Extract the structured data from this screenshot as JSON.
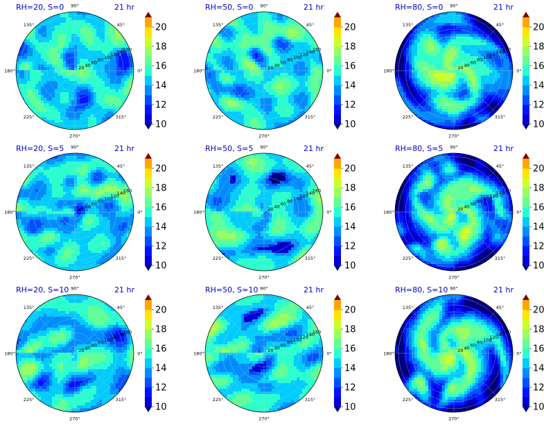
{
  "figure": {
    "colormap": "jet",
    "colors": [
      "#00007f",
      "#0000d5",
      "#0014ff",
      "#0050ff",
      "#008cff",
      "#00ccff",
      "#29ffce",
      "#60ff97",
      "#97ff60",
      "#ceff29",
      "#ffe500",
      "#ffa600",
      "#ff6800",
      "#ff2900",
      "#d50000",
      "#7f0000"
    ],
    "level_bounds": [
      10,
      11,
      12,
      13,
      14,
      15,
      16,
      17,
      18,
      19,
      20,
      21
    ],
    "grid": true
  },
  "chart_data": [
    {
      "type": "heatmap",
      "projection": "polar",
      "title": "RH=20, S=0",
      "time_label": "21 hr",
      "angle_ticks": [
        "90°",
        "45°",
        "0°",
        "315°",
        "270°",
        "225°",
        "180°",
        "135°"
      ],
      "radial_ticks": [
        "20",
        "40",
        "60",
        "80",
        "100",
        "120",
        "140",
        "160"
      ],
      "colorbar_ticks": [
        "10",
        "12",
        "14",
        "16",
        "18",
        "20"
      ],
      "colorbar_extend": "both",
      "value_range": [
        10,
        21
      ],
      "mean_value": 14.8,
      "pattern": "turbulent"
    },
    {
      "type": "heatmap",
      "projection": "polar",
      "title": "RH=50, S=0",
      "time_label": "21 hr",
      "angle_ticks": [
        "90°",
        "45°",
        "0°",
        "315°",
        "270°",
        "225°",
        "180°",
        "135°"
      ],
      "radial_ticks": [
        "20",
        "40",
        "60",
        "80",
        "100",
        "120",
        "140",
        "160"
      ],
      "colorbar_ticks": [
        "10",
        "12",
        "14",
        "16",
        "18",
        "20"
      ],
      "colorbar_extend": "both",
      "value_range": [
        10,
        21
      ],
      "mean_value": 15.0,
      "pattern": "turbulent with weak spiral"
    },
    {
      "type": "heatmap",
      "projection": "polar",
      "title": "RH=80, S=0",
      "time_label": "21 hr",
      "angle_ticks": [
        "90°",
        "45°",
        "0°",
        "315°",
        "270°",
        "225°",
        "180°",
        "135°"
      ],
      "radial_ticks": [
        "20",
        "40",
        "60",
        "80",
        "100",
        "120",
        "140",
        "160"
      ],
      "colorbar_ticks": [
        "10",
        "12",
        "14",
        "16",
        "18",
        "20"
      ],
      "colorbar_extend": "both",
      "value_range": [
        10,
        21
      ],
      "mean_value": 14.2,
      "pattern": "organized spiral vortex, low values at outer edge"
    },
    {
      "type": "heatmap",
      "projection": "polar",
      "title": "RH=20, S=5",
      "time_label": "21 hr",
      "angle_ticks": [
        "90°",
        "45°",
        "0°",
        "315°",
        "270°",
        "225°",
        "180°",
        "135°"
      ],
      "radial_ticks": [
        "20",
        "40",
        "60",
        "80",
        "100",
        "120",
        "140",
        "160"
      ],
      "colorbar_ticks": [
        "10",
        "12",
        "14",
        "16",
        "18",
        "20"
      ],
      "colorbar_extend": "both",
      "value_range": [
        10,
        21
      ],
      "mean_value": 14.7,
      "pattern": "turbulent"
    },
    {
      "type": "heatmap",
      "projection": "polar",
      "title": "RH=50, S=5",
      "time_label": "21 hr",
      "angle_ticks": [
        "90°",
        "45°",
        "0°",
        "315°",
        "270°",
        "225°",
        "180°",
        "135°"
      ],
      "radial_ticks": [
        "20",
        "40",
        "60",
        "80",
        "100",
        "120",
        "140",
        "160"
      ],
      "colorbar_ticks": [
        "10",
        "12",
        "14",
        "16",
        "18",
        "20"
      ],
      "colorbar_extend": "both",
      "value_range": [
        10,
        21
      ],
      "mean_value": 14.8,
      "pattern": "turbulent with dark streaks"
    },
    {
      "type": "heatmap",
      "projection": "polar",
      "title": "RH=80, S=5",
      "time_label": "21 hr",
      "angle_ticks": [
        "90°",
        "45°",
        "0°",
        "315°",
        "270°",
        "225°",
        "180°",
        "135°"
      ],
      "radial_ticks": [
        "20",
        "40",
        "60",
        "80",
        "100",
        "120",
        "140",
        "160"
      ],
      "colorbar_ticks": [
        "10",
        "12",
        "14",
        "16",
        "18",
        "20"
      ],
      "colorbar_extend": "both",
      "value_range": [
        10,
        21
      ],
      "mean_value": 14.0,
      "pattern": "organized spiral vortex, low values at outer edge"
    },
    {
      "type": "heatmap",
      "projection": "polar",
      "title": "RH=20, S=10",
      "time_label": "21 hr",
      "angle_ticks": [
        "90°",
        "45°",
        "0°",
        "315°",
        "270°",
        "225°",
        "180°",
        "135°"
      ],
      "radial_ticks": [
        "20",
        "40",
        "60",
        "80",
        "100",
        "120",
        "140",
        "160"
      ],
      "colorbar_ticks": [
        "10",
        "12",
        "14",
        "16",
        "18",
        "20"
      ],
      "colorbar_extend": "both",
      "value_range": [
        10,
        21
      ],
      "mean_value": 14.7,
      "pattern": "turbulent"
    },
    {
      "type": "heatmap",
      "projection": "polar",
      "title": "RH=50, S=10",
      "time_label": "21 hr",
      "angle_ticks": [
        "90°",
        "45°",
        "0°",
        "315°",
        "270°",
        "225°",
        "180°",
        "135°"
      ],
      "radial_ticks": [
        "20",
        "40",
        "60",
        "80",
        "100",
        "120",
        "140",
        "160"
      ],
      "colorbar_ticks": [
        "10",
        "12",
        "14",
        "16",
        "18",
        "20"
      ],
      "colorbar_extend": "both",
      "value_range": [
        10,
        21
      ],
      "mean_value": 14.9,
      "pattern": "turbulent with dark streaks"
    },
    {
      "type": "heatmap",
      "projection": "polar",
      "title": "RH=80, S=10",
      "time_label": "21 hr",
      "angle_ticks": [
        "90°",
        "45°",
        "0°",
        "315°",
        "270°",
        "225°",
        "180°",
        "135°"
      ],
      "radial_ticks": [
        "20",
        "40",
        "60",
        "80",
        "100",
        "120",
        "140",
        "160"
      ],
      "colorbar_ticks": [
        "10",
        "12",
        "14",
        "16",
        "18",
        "20"
      ],
      "colorbar_extend": "both",
      "value_range": [
        10,
        21
      ],
      "mean_value": 14.1,
      "pattern": "organized spiral vortex, low values at outer edge"
    }
  ]
}
